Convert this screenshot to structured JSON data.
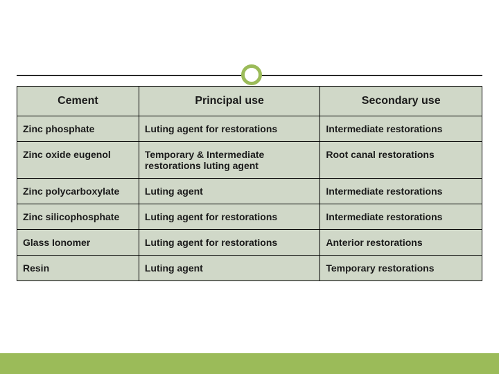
{
  "theme": {
    "accent": "#9bbb59",
    "cell_bg": "#d0d8c8",
    "line": "#2a2a2a",
    "border": "#000000",
    "text": "#1a1a1a"
  },
  "table": {
    "columns": [
      "Cement",
      "Principal use",
      "Secondary use"
    ],
    "rows": [
      [
        "Zinc phosphate",
        "Luting agent for restorations",
        "Intermediate restorations"
      ],
      [
        "Zinc oxide eugenol",
        "Temporary & Intermediate restorations luting agent",
        "Root canal restorations"
      ],
      [
        "Zinc polycarboxylate",
        "Luting agent",
        "Intermediate restorations"
      ],
      [
        "Zinc silicophosphate",
        "Luting agent for restorations",
        "Intermediate restorations"
      ],
      [
        "Glass Ionomer",
        "Luting agent for restorations",
        "Anterior restorations"
      ],
      [
        "Resin",
        "Luting agent",
        "Temporary restorations"
      ]
    ]
  }
}
